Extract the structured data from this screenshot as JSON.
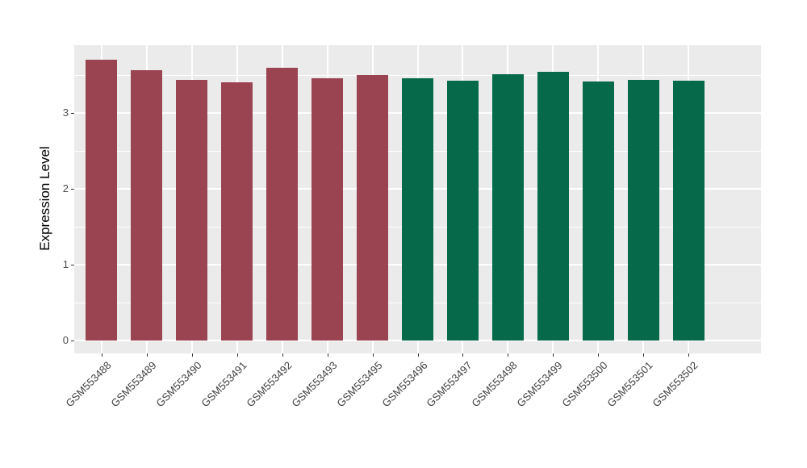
{
  "figure": {
    "background": "#FFFFFF",
    "panel_background": "#EBEBEB",
    "grid_color": "#FFFFFF",
    "axis_text_color": "#4D4D4D",
    "axis_title_color": "#000000",
    "tick_mark_color": "#333333"
  },
  "chart_data": {
    "type": "bar",
    "title": "",
    "xlabel": "",
    "ylabel": "Expression Level",
    "categories": [
      "GSM553488",
      "GSM553489",
      "GSM553490",
      "GSM553491",
      "GSM553492",
      "GSM553493",
      "GSM553495",
      "GSM553496",
      "GSM553497",
      "GSM553498",
      "GSM553499",
      "GSM553500",
      "GSM553501",
      "GSM553502"
    ],
    "values": [
      3.7,
      3.56,
      3.44,
      3.4,
      3.6,
      3.46,
      3.5,
      3.46,
      3.43,
      3.51,
      3.54,
      3.42,
      3.44,
      3.43
    ],
    "bar_colors": [
      "#9B4451",
      "#9B4451",
      "#9B4451",
      "#9B4451",
      "#9B4451",
      "#9B4451",
      "#9B4451",
      "#05694A",
      "#05694A",
      "#05694A",
      "#05694A",
      "#05694A",
      "#05694A",
      "#05694A"
    ],
    "group_colors": {
      "group1": "#9B4451",
      "group2": "#05694A"
    },
    "ylim": [
      0,
      3.89
    ],
    "yticks": [
      0,
      1,
      2,
      3
    ],
    "yticks_minor": [
      0.5,
      1.5,
      2.5,
      3.5
    ],
    "grid": true,
    "legend_position": "none",
    "x_tick_rotation_deg": 45,
    "bar_relative_width": 0.7
  }
}
